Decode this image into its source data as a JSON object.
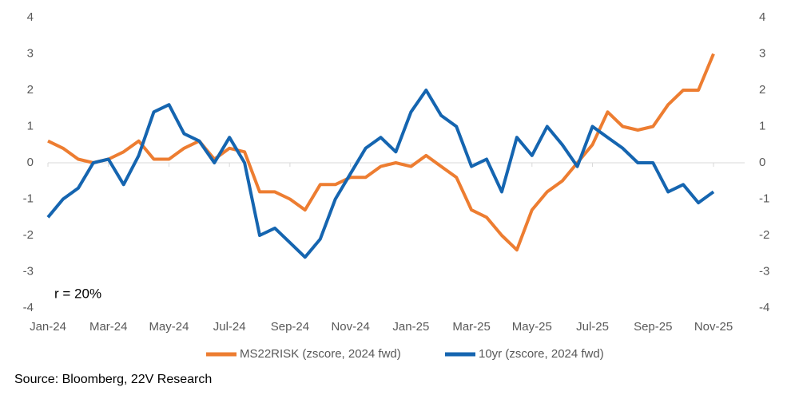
{
  "chart_data": {
    "type": "line",
    "annotation": "r =  20%",
    "source": "Source: Bloomberg, 22V Research",
    "categories": [
      "Jan-24",
      null,
      null,
      null,
      "Mar-24",
      null,
      null,
      null,
      "May-24",
      null,
      null,
      null,
      "Jul-24",
      null,
      null,
      null,
      "Sep-24",
      null,
      null,
      null,
      "Nov-24",
      null,
      null,
      null,
      "Jan-25",
      null,
      null,
      null,
      "Mar-25",
      null,
      null,
      null,
      "May-25",
      null,
      null,
      null,
      "Jul-25",
      null,
      null,
      null,
      "Sep-25",
      null,
      null,
      null,
      "Nov-25"
    ],
    "series": [
      {
        "name": "MS22RISK (zscore, 2024 fwd)",
        "color": "#ed7d31",
        "values": [
          0.6,
          0.4,
          0.1,
          0.0,
          0.1,
          0.3,
          0.6,
          0.1,
          0.1,
          0.4,
          0.6,
          0.1,
          0.4,
          0.3,
          -0.8,
          -0.8,
          -1.0,
          -1.3,
          -0.6,
          -0.6,
          -0.4,
          -0.4,
          -0.1,
          0.0,
          -0.1,
          0.2,
          -0.1,
          -0.4,
          -1.3,
          -1.5,
          -2.0,
          -2.4,
          -1.3,
          -0.8,
          -0.5,
          0.0,
          0.5,
          1.4,
          1.0,
          0.9,
          1.0,
          1.6,
          2.0,
          2.0,
          3.0
        ]
      },
      {
        "name": "10yr (zscore, 2024 fwd)",
        "color": "#1565b0",
        "axis": "y2",
        "values": [
          -1.5,
          -1.0,
          -0.7,
          0.0,
          0.1,
          -0.6,
          0.2,
          1.4,
          1.6,
          0.8,
          0.6,
          0.0,
          0.7,
          0.0,
          -2.0,
          -1.8,
          -2.2,
          -2.6,
          -2.1,
          -1.0,
          -0.3,
          0.4,
          0.7,
          0.3,
          1.4,
          2.0,
          1.3,
          1.0,
          -0.1,
          0.1,
          -0.8,
          0.7,
          0.2,
          1.0,
          0.5,
          -0.1,
          1.0,
          0.7,
          0.4,
          0.0,
          0.0,
          -0.8,
          -0.6,
          -1.1,
          -0.8
        ]
      }
    ],
    "ylim": [
      -4,
      4
    ],
    "yticks": [
      -4,
      -3,
      -2,
      -1,
      0,
      1,
      2,
      3,
      4
    ],
    "y2lim": [
      -4,
      4
    ],
    "y2ticks": [
      -4,
      -3,
      -2,
      -1,
      0,
      1,
      2,
      3,
      4
    ],
    "legend": "bottom"
  }
}
